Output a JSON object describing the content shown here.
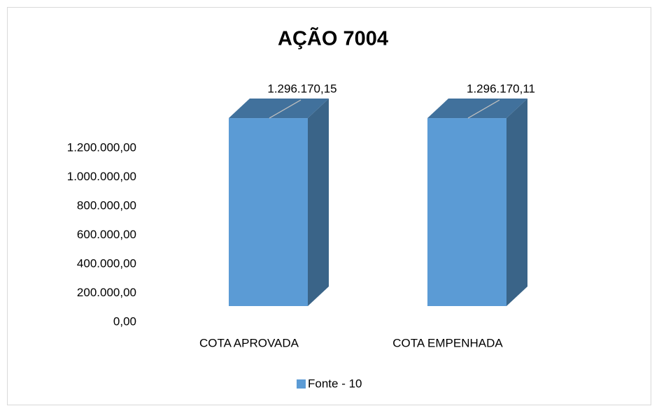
{
  "chart_data": {
    "type": "bar3d",
    "title": "AÇÃO 7004",
    "categories": [
      "COTA APROVADA",
      "COTA EMPENHADA"
    ],
    "series": [
      {
        "name": "Fonte - 10",
        "color": "#5b9bd5",
        "values": [
          1296170.15,
          1296170.11
        ],
        "value_labels": [
          "1.296.170,15",
          "1.296.170,11"
        ]
      }
    ],
    "ylim": [
      0,
      1400000
    ],
    "yticks": [
      {
        "value": 0,
        "label": "0,00"
      },
      {
        "value": 200000,
        "label": "200.000,00"
      },
      {
        "value": 400000,
        "label": "400.000,00"
      },
      {
        "value": 600000,
        "label": "600.000,00"
      },
      {
        "value": 800000,
        "label": "800.000,00"
      },
      {
        "value": 1000000,
        "label": "1.000.000,00"
      },
      {
        "value": 1200000,
        "label": "1.200.000,00"
      }
    ],
    "grid": false,
    "legend": "bottom"
  }
}
